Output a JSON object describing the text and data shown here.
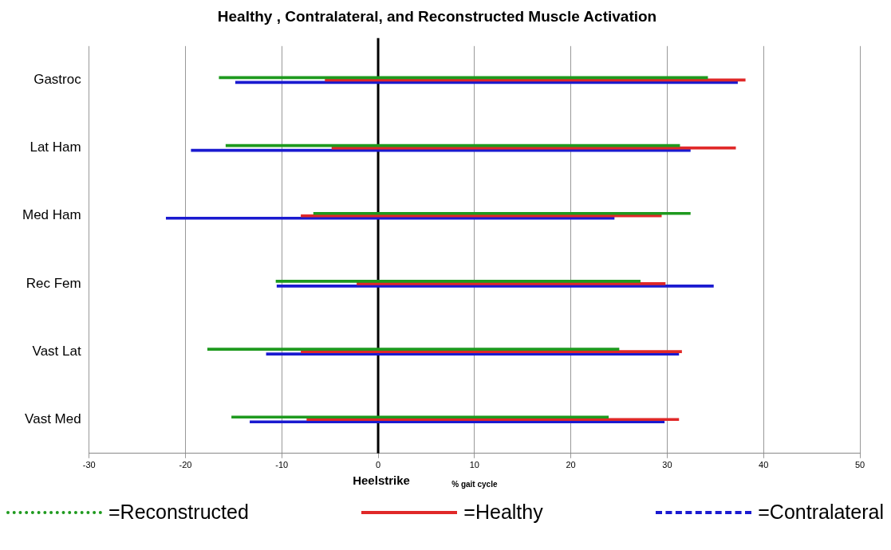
{
  "chart_data": {
    "type": "bar",
    "orientation": "horizontal",
    "title": "Healthy , Contralateral, and Reconstructed Muscle Activation",
    "xlabel": "% gait cycle",
    "categories": [
      "Gastroc",
      "Lat Ham",
      "Med Ham",
      "Rec Fem",
      "Vast Lat",
      "Vast Med"
    ],
    "series": [
      {
        "name": "=Reconstructed",
        "color": "#1e9a1e",
        "line_style": "dotted",
        "base": [
          -16.5,
          -15.8,
          -6.7,
          -10.6,
          -17.7,
          -15.2
        ],
        "values": [
          50.7,
          47.1,
          39.1,
          37.8,
          42.7,
          39.1
        ]
      },
      {
        "name": "=Healthy",
        "color": "#e02828",
        "line_style": "solid",
        "base": [
          -5.5,
          -4.8,
          -8.0,
          -2.2,
          -8.0,
          -7.4
        ],
        "values": [
          43.6,
          41.9,
          37.4,
          32.0,
          39.5,
          38.6
        ]
      },
      {
        "name": "=Contralateral",
        "color": "#1a1ad0",
        "line_style": "dashed",
        "base": [
          -14.8,
          -19.4,
          -22.0,
          -10.5,
          -11.6,
          -13.3
        ],
        "values": [
          52.1,
          51.8,
          46.5,
          45.3,
          42.8,
          43.0
        ]
      }
    ],
    "xlim": [
      -30,
      50
    ],
    "xticks": [
      -30,
      -20,
      -10,
      0,
      10,
      20,
      30,
      40,
      50
    ],
    "grid": "x",
    "legend": "bottom",
    "ref_lines": [
      {
        "axis": "x",
        "value": 0,
        "label": "Heelstrike",
        "color": "#000000"
      }
    ]
  }
}
